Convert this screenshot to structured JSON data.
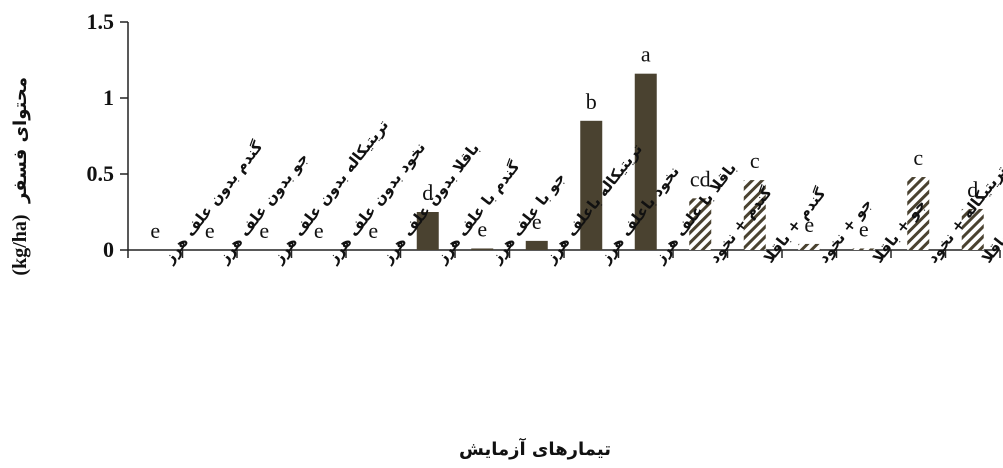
{
  "chart_data": {
    "type": "bar",
    "title": "",
    "xlabel": "تیمارهای آزمایش",
    "ylabel": "محتوای فسفر",
    "ylabel_unit": "(kg/ha)",
    "ylim": [
      0,
      1.5
    ],
    "yticks": [
      "0",
      "0.5",
      "1",
      "1.5"
    ],
    "grid": false,
    "colors": {
      "solid": "#4a4230",
      "hatch": "#4a4230",
      "axis": "#222222"
    },
    "categories": [
      "گندم بدون علف هرز",
      "جو بدون علف هرز",
      "تریتیکاله بدون علف هرز",
      "نخود بدون علف هرز",
      "باقلا بدون علف هرز",
      "گندم با علف هرز",
      "جو با علف هرز",
      "تریتیکاله باعلف هرز",
      "نخود باعلف هرز",
      "باقلا با علف هرز",
      "گندم + نخود",
      "گندم + باقلا",
      "جو + نخود",
      "جو + باقلا",
      "تریتیکاله + نخود",
      "تریتیکاله + باقلا"
    ],
    "values": [
      0,
      0,
      0,
      0,
      0,
      0.25,
      0.01,
      0.06,
      0.85,
      1.16,
      0.34,
      0.46,
      0.04,
      0.01,
      0.48,
      0.27
    ],
    "pattern": [
      "solid",
      "solid",
      "solid",
      "solid",
      "solid",
      "solid",
      "solid",
      "solid",
      "solid",
      "solid",
      "hatch",
      "hatch",
      "hatch",
      "hatch",
      "hatch",
      "hatch"
    ],
    "letters": [
      "e",
      "e",
      "e",
      "e",
      "e",
      "d",
      "e",
      "e",
      "b",
      "a",
      "cd",
      "c",
      "e",
      "e",
      "c",
      "d"
    ]
  }
}
